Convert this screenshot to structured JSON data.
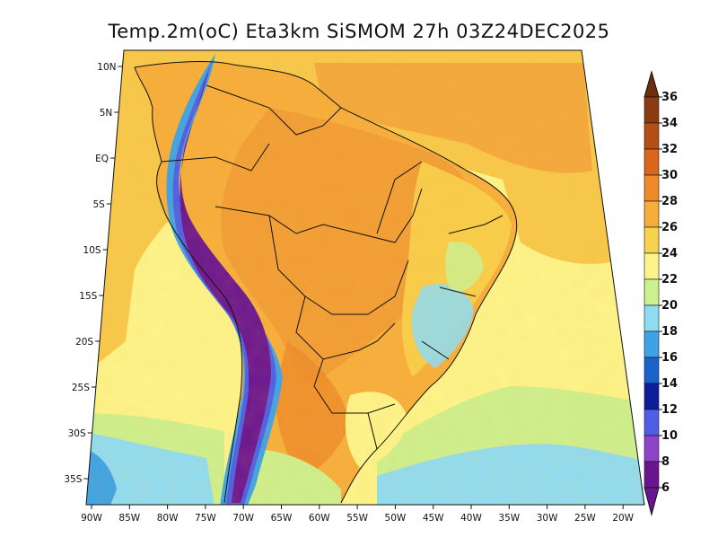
{
  "title": "Temp.2m(oC) Eta3km SiSMOM 27h 03Z24DEC2025",
  "variable": "Temp.2m(oC)",
  "model": "Eta3km SiSMOM",
  "forecast_hour": "27h",
  "valid_time": "03Z24DEC2025",
  "lat_ticks": [
    {
      "label": "10N",
      "value": 10
    },
    {
      "label": "5N",
      "value": 5
    },
    {
      "label": "EQ",
      "value": 0
    },
    {
      "label": "5S",
      "value": -5
    },
    {
      "label": "10S",
      "value": -10
    },
    {
      "label": "15S",
      "value": -15
    },
    {
      "label": "20S",
      "value": -20
    },
    {
      "label": "25S",
      "value": -25
    },
    {
      "label": "30S",
      "value": -30
    },
    {
      "label": "35S",
      "value": -35
    }
  ],
  "lon_ticks": [
    {
      "label": "90W",
      "value": -90
    },
    {
      "label": "85W",
      "value": -85
    },
    {
      "label": "80W",
      "value": -80
    },
    {
      "label": "75W",
      "value": -75
    },
    {
      "label": "70W",
      "value": -70
    },
    {
      "label": "65W",
      "value": -65
    },
    {
      "label": "60W",
      "value": -60
    },
    {
      "label": "55W",
      "value": -55
    },
    {
      "label": "50W",
      "value": -50
    },
    {
      "label": "45W",
      "value": -45
    },
    {
      "label": "40W",
      "value": -40
    },
    {
      "label": "35W",
      "value": -35
    },
    {
      "label": "30W",
      "value": -30
    },
    {
      "label": "25W",
      "value": -25
    },
    {
      "label": "20W",
      "value": -20
    }
  ],
  "colorbar": {
    "labels": [
      "36",
      "34",
      "32",
      "30",
      "28",
      "26",
      "24",
      "22",
      "20",
      "18",
      "16",
      "14",
      "12",
      "10",
      "8",
      "6"
    ],
    "colors": [
      "#6e2d0e",
      "#8b3a12",
      "#b34f14",
      "#d8661b",
      "#ee8a2a",
      "#f6ad3b",
      "#f8d24d",
      "#fcf48a",
      "#cdf08e",
      "#8fdcf2",
      "#3da3e6",
      "#1a63cc",
      "#0d1e9a",
      "#4e5ee6",
      "#8e44c8",
      "#6a1590"
    ]
  },
  "colors": {
    "ocean_warm": "#f7c84a",
    "ocean_mid": "#fcf48a",
    "ocean_cool": "#cdf08e",
    "ocean_cold": "#8fdcf2",
    "land_hot": "#f09a35",
    "land_warm": "#f6b040",
    "andes": "#5a1a8a",
    "border": "#111111"
  }
}
